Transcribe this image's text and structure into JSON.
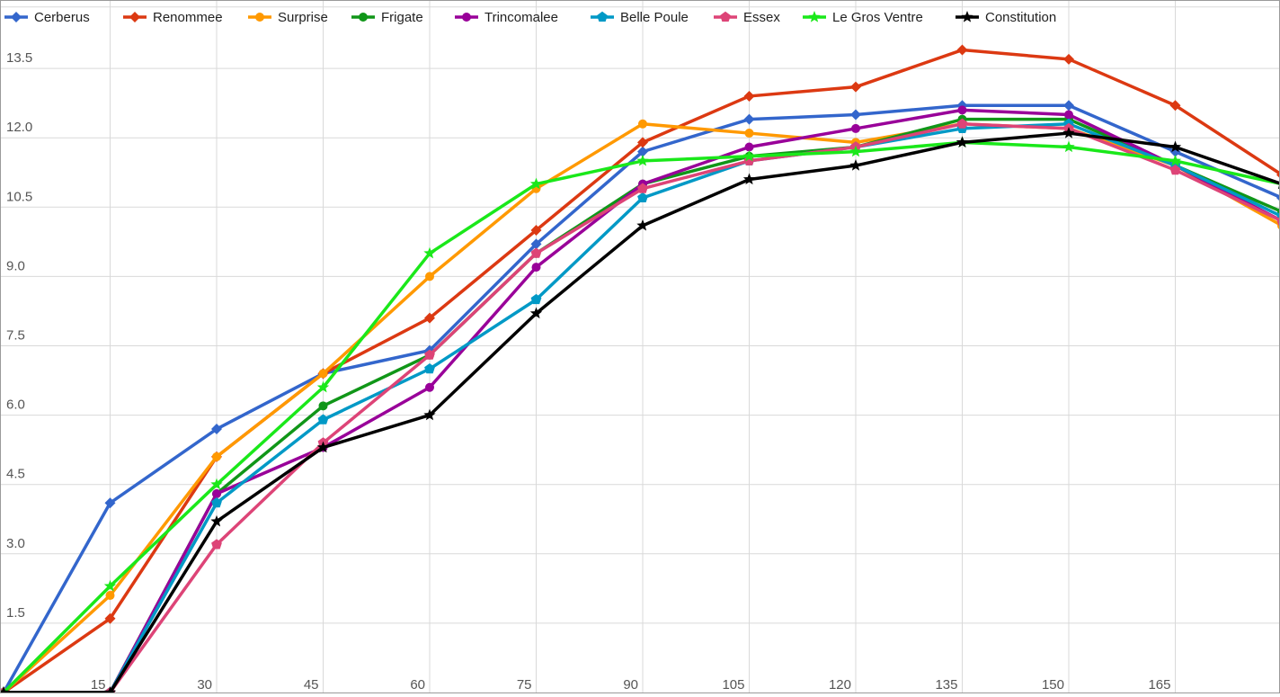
{
  "chart_data": {
    "type": "line",
    "title": "",
    "xlabel": "",
    "ylabel": "",
    "legend_position": "top-left",
    "grid": true,
    "xlim": [
      0,
      180
    ],
    "ylim": [
      0,
      14.9
    ],
    "x_ticks": [
      15,
      30,
      45,
      60,
      75,
      90,
      105,
      120,
      135,
      150,
      165
    ],
    "y_ticks": [
      1.5,
      3.0,
      4.5,
      6.0,
      7.5,
      9.0,
      10.5,
      12.0,
      13.5
    ],
    "y_tick_labels": [
      "1.5",
      "3.0",
      "4.5",
      "6.0",
      "7.5",
      "9.0",
      "10.5",
      "12.0",
      "13.5"
    ],
    "x_tick_labels": [
      "15",
      "30",
      "45",
      "60",
      "75",
      "90",
      "105",
      "120",
      "135",
      "150",
      "165"
    ],
    "x": [
      0,
      15,
      30,
      45,
      60,
      75,
      90,
      105,
      120,
      135,
      150,
      165,
      180
    ],
    "series": [
      {
        "name": "Cerberus",
        "color": "#3366cc",
        "marker": "diamond",
        "values": [
          0,
          4.1,
          5.7,
          6.9,
          7.4,
          9.7,
          11.7,
          12.4,
          12.5,
          12.7,
          12.7,
          11.7,
          10.7
        ]
      },
      {
        "name": "Renommee",
        "color": "#dc3912",
        "marker": "diamond",
        "values": [
          0,
          1.6,
          5.1,
          6.9,
          8.1,
          10.0,
          11.9,
          12.9,
          13.1,
          13.9,
          13.7,
          12.7,
          11.2
        ]
      },
      {
        "name": "Surprise",
        "color": "#ff9900",
        "marker": "circle",
        "values": [
          0,
          2.1,
          5.1,
          6.9,
          9.0,
          10.9,
          12.3,
          12.1,
          11.9,
          12.3,
          12.2,
          11.4,
          10.1
        ]
      },
      {
        "name": "Frigate",
        "color": "#109618",
        "marker": "circle",
        "values": [
          0,
          0,
          4.3,
          6.2,
          7.3,
          9.5,
          11.0,
          11.6,
          11.8,
          12.4,
          12.4,
          11.4,
          10.4
        ]
      },
      {
        "name": "Trincomalee",
        "color": "#990099",
        "marker": "circle",
        "values": [
          0,
          0,
          4.3,
          5.3,
          6.6,
          9.2,
          11.0,
          11.8,
          12.2,
          12.6,
          12.5,
          11.4,
          10.2
        ]
      },
      {
        "name": "Belle Poule",
        "color": "#0099c6",
        "marker": "pentagon",
        "values": [
          0,
          0,
          4.1,
          5.9,
          7.0,
          8.5,
          10.7,
          11.5,
          11.8,
          12.2,
          12.3,
          11.4,
          10.3
        ]
      },
      {
        "name": "Essex",
        "color": "#dd4477",
        "marker": "pentagon",
        "values": [
          0,
          0,
          3.2,
          5.4,
          7.3,
          9.5,
          10.9,
          11.5,
          11.8,
          12.3,
          12.2,
          11.3,
          10.2
        ]
      },
      {
        "name": "Le Gros Ventre",
        "color": "#1ae81a",
        "marker": "star",
        "values": [
          0,
          2.3,
          4.5,
          6.6,
          9.5,
          11.0,
          11.5,
          11.6,
          11.7,
          11.9,
          11.8,
          11.5,
          11.0
        ]
      },
      {
        "name": "Constitution",
        "color": "#000000",
        "marker": "star",
        "values": [
          0,
          0,
          3.7,
          5.3,
          6.0,
          8.2,
          10.1,
          11.1,
          11.4,
          11.9,
          12.1,
          11.8,
          11.0
        ]
      }
    ]
  }
}
